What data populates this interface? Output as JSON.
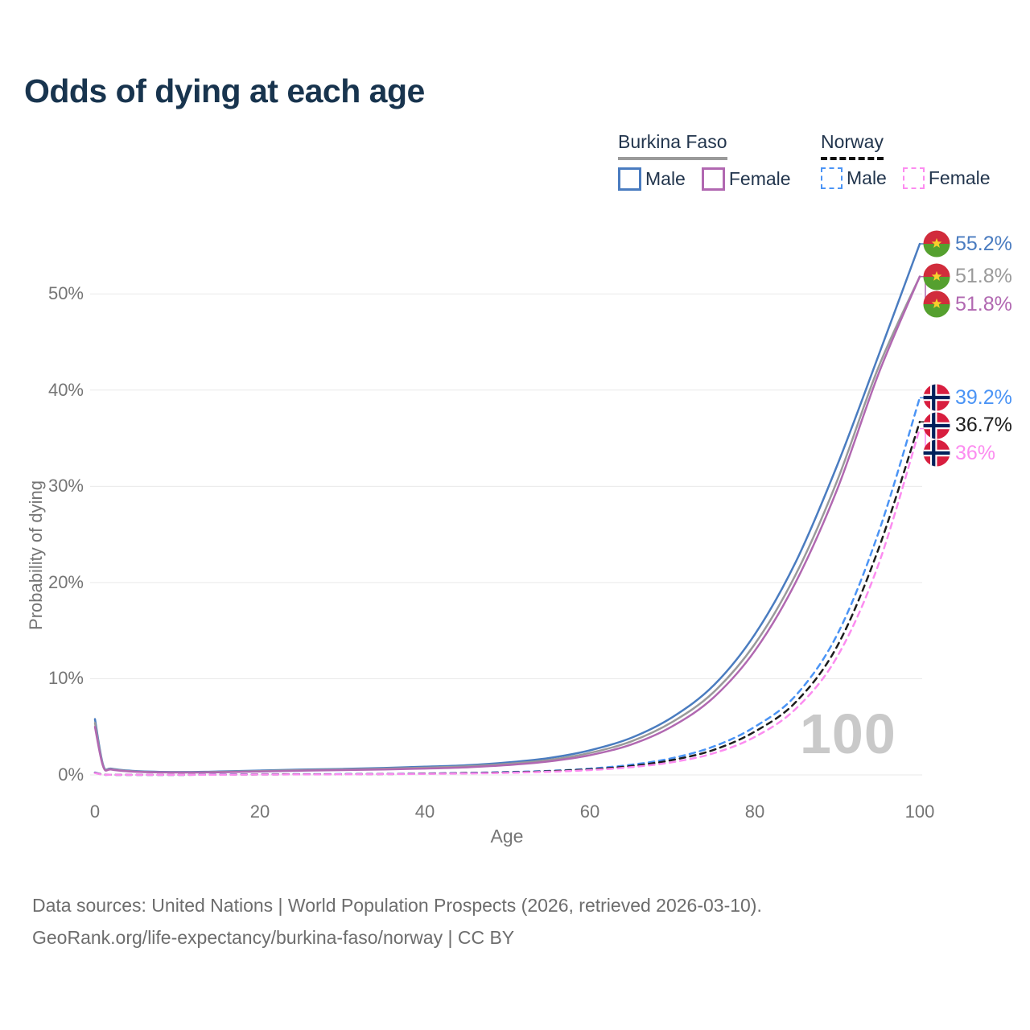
{
  "title": "Odds of dying at each age",
  "legend": {
    "groups": [
      {
        "name": "Burkina Faso",
        "underline_color": "#9a9a9a",
        "underline_style": "solid",
        "items": [
          {
            "label": "Male",
            "color": "#4a7cc0",
            "dashed": false
          },
          {
            "label": "Female",
            "color": "#b168b1",
            "dashed": false
          }
        ]
      },
      {
        "name": "Norway",
        "underline_color": "#111111",
        "underline_style": "dashed",
        "items": [
          {
            "label": "Male",
            "color": "#4b94f5",
            "dashed": true
          },
          {
            "label": "Female",
            "color": "#fc8cf0",
            "dashed": true
          }
        ]
      }
    ]
  },
  "chart_data": {
    "type": "line",
    "title": "Odds of dying at each age",
    "xlabel": "Age",
    "ylabel": "Probability of dying",
    "xlim": [
      0,
      100
    ],
    "ylim_pct": [
      0,
      57
    ],
    "grid": "horizontal",
    "legend_position": "top-right",
    "watermark": "100",
    "x_ticks": [
      0,
      20,
      40,
      60,
      80,
      100
    ],
    "x_tick_labels": [
      "0",
      "20",
      "40",
      "60",
      "80",
      "100"
    ],
    "y_ticks_pct": [
      0,
      10,
      20,
      30,
      40,
      50
    ],
    "y_tick_labels": [
      "0%",
      "10%",
      "20%",
      "30%",
      "40%",
      "50%"
    ],
    "x": [
      0,
      1,
      2,
      5,
      10,
      15,
      20,
      25,
      30,
      35,
      40,
      45,
      50,
      55,
      60,
      65,
      70,
      75,
      80,
      85,
      90,
      95,
      100
    ],
    "series": [
      {
        "name": "Burkina Faso Male",
        "country": "Burkina Faso",
        "sex": "Male",
        "color": "#4a7cc0",
        "dashed": false,
        "flag": "bf",
        "end_label": "55.2%",
        "end_value_pct": 55.2,
        "values": [
          5.8,
          1.0,
          0.65,
          0.4,
          0.3,
          0.35,
          0.45,
          0.55,
          0.62,
          0.72,
          0.85,
          1.0,
          1.3,
          1.75,
          2.55,
          3.85,
          6.0,
          9.3,
          14.6,
          22.2,
          32.2,
          43.6,
          55.2
        ]
      },
      {
        "name": "Burkina Faso Both sexes",
        "country": "Burkina Faso",
        "sex": "Both",
        "color": "#9a9a9a",
        "dashed": false,
        "flag": "bf",
        "end_label": "51.8%",
        "end_value_pct": 51.8,
        "values": [
          5.4,
          0.92,
          0.6,
          0.36,
          0.27,
          0.31,
          0.4,
          0.49,
          0.55,
          0.64,
          0.75,
          0.89,
          1.15,
          1.55,
          2.28,
          3.48,
          5.5,
          8.6,
          13.6,
          20.9,
          30.6,
          42.4,
          51.8
        ]
      },
      {
        "name": "Burkina Faso Female",
        "country": "Burkina Faso",
        "sex": "Female",
        "color": "#b168b1",
        "dashed": false,
        "flag": "bf",
        "end_label": "51.8%",
        "end_value_pct": 51.8,
        "values": [
          5.0,
          0.85,
          0.55,
          0.33,
          0.25,
          0.28,
          0.36,
          0.44,
          0.5,
          0.57,
          0.66,
          0.79,
          1.02,
          1.4,
          2.05,
          3.15,
          5.05,
          8.05,
          12.9,
          20.1,
          29.7,
          41.7,
          51.8
        ]
      },
      {
        "name": "Norway Male",
        "country": "Norway",
        "sex": "Male",
        "color": "#4b94f5",
        "dashed": true,
        "flag": "no",
        "end_label": "39.2%",
        "end_value_pct": 39.2,
        "values": [
          0.25,
          0.03,
          0.02,
          0.01,
          0.01,
          0.04,
          0.07,
          0.08,
          0.09,
          0.11,
          0.15,
          0.21,
          0.3,
          0.42,
          0.65,
          1.05,
          1.75,
          2.95,
          5.0,
          8.3,
          14.6,
          25.2,
          39.2
        ]
      },
      {
        "name": "Norway Both sexes",
        "country": "Norway",
        "sex": "Both",
        "color": "#1d1d1d",
        "dashed": true,
        "flag": "no",
        "end_label": "36.7%",
        "end_value_pct": 36.7,
        "values": [
          0.22,
          0.03,
          0.02,
          0.01,
          0.01,
          0.03,
          0.05,
          0.06,
          0.07,
          0.09,
          0.13,
          0.18,
          0.26,
          0.38,
          0.58,
          0.92,
          1.55,
          2.6,
          4.5,
          7.6,
          13.4,
          23.5,
          36.7
        ]
      },
      {
        "name": "Norway Female",
        "country": "Norway",
        "sex": "Female",
        "color": "#fc8cf0",
        "dashed": true,
        "flag": "no",
        "end_label": "36%",
        "end_value_pct": 36.0,
        "values": [
          0.2,
          0.02,
          0.02,
          0.01,
          0.01,
          0.02,
          0.04,
          0.05,
          0.06,
          0.08,
          0.11,
          0.15,
          0.22,
          0.33,
          0.5,
          0.8,
          1.32,
          2.25,
          3.95,
          6.9,
          12.3,
          21.9,
          36.0
        ]
      }
    ],
    "flag_colors": {
      "burkina_faso": {
        "red": "#d12c3c",
        "green": "#55a02f",
        "star": "#f7cf2e"
      },
      "norway": {
        "red": "#d81e3f",
        "navy": "#00205b",
        "white": "#ffffff"
      }
    },
    "grid_color": "#eaeaea"
  },
  "footer": {
    "line1": "Data sources: United Nations | World Population Prospects (2026, retrieved 2026-03-10).",
    "line2": "GeoRank.org/life-expectancy/burkina-faso/norway | CC BY"
  }
}
